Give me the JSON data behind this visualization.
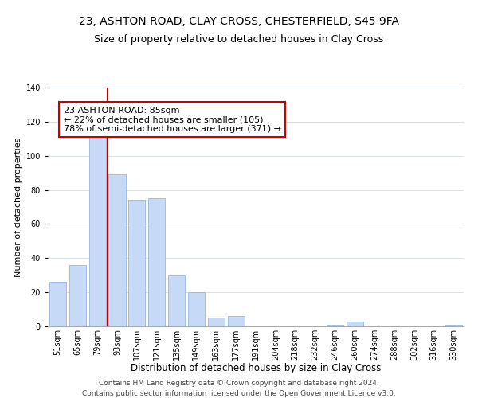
{
  "title1": "23, ASHTON ROAD, CLAY CROSS, CHESTERFIELD, S45 9FA",
  "title2": "Size of property relative to detached houses in Clay Cross",
  "xlabel": "Distribution of detached houses by size in Clay Cross",
  "ylabel": "Number of detached properties",
  "bar_labels": [
    "51sqm",
    "65sqm",
    "79sqm",
    "93sqm",
    "107sqm",
    "121sqm",
    "135sqm",
    "149sqm",
    "163sqm",
    "177sqm",
    "191sqm",
    "204sqm",
    "218sqm",
    "232sqm",
    "246sqm",
    "260sqm",
    "274sqm",
    "288sqm",
    "302sqm",
    "316sqm",
    "330sqm"
  ],
  "bar_values": [
    26,
    36,
    118,
    89,
    74,
    75,
    30,
    20,
    5,
    6,
    0,
    0,
    0,
    0,
    1,
    3,
    0,
    0,
    0,
    0,
    1
  ],
  "bar_color": "#c6d9f7",
  "bar_edge_color": "#9ab8e0",
  "vline_color": "#cc0000",
  "annotation_text": "23 ASHTON ROAD: 85sqm\n← 22% of detached houses are smaller (105)\n78% of semi-detached houses are larger (371) →",
  "annotation_box_color": "#ffffff",
  "annotation_box_edge": "#cc0000",
  "ylim": [
    0,
    140
  ],
  "yticks": [
    0,
    20,
    40,
    60,
    80,
    100,
    120,
    140
  ],
  "footer1": "Contains HM Land Registry data © Crown copyright and database right 2024.",
  "footer2": "Contains public sector information licensed under the Open Government Licence v3.0.",
  "title1_fontsize": 10,
  "title2_fontsize": 9,
  "xlabel_fontsize": 8.5,
  "ylabel_fontsize": 8,
  "tick_fontsize": 7,
  "annotation_fontsize": 8,
  "footer_fontsize": 6.5
}
